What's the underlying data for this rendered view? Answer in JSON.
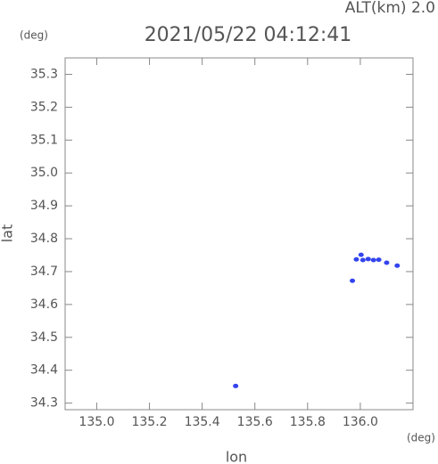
{
  "chart_data": {
    "type": "scatter",
    "title": "2021/05/22 04:12:41",
    "subtitle": "ALT(km) 2.0",
    "y_unit": "(deg)",
    "x_unit": "(deg)",
    "xlabel": "lon",
    "ylabel": "lat",
    "x": [
      135.527,
      135.97,
      135.985,
      136.003,
      136.01,
      136.03,
      136.05,
      136.07,
      136.1,
      136.14
    ],
    "values": [
      34.352,
      34.672,
      34.737,
      34.751,
      34.735,
      34.738,
      34.735,
      34.736,
      34.727,
      34.718
    ],
    "color": "#3344ee",
    "xlim": [
      134.88,
      136.2
    ],
    "ylim": [
      34.28,
      35.35
    ],
    "xticks": [
      {
        "value": 135.0,
        "label": "135.0"
      },
      135.2,
      135.4,
      135.6,
      135.8,
      {
        "value": 136.0,
        "label": "136.0"
      }
    ],
    "yticks": [
      34.3,
      34.4,
      34.5,
      34.6,
      34.7,
      34.8,
      34.9,
      {
        "value": 35.0,
        "label": "35.0"
      },
      35.1,
      35.2,
      35.3
    ]
  }
}
